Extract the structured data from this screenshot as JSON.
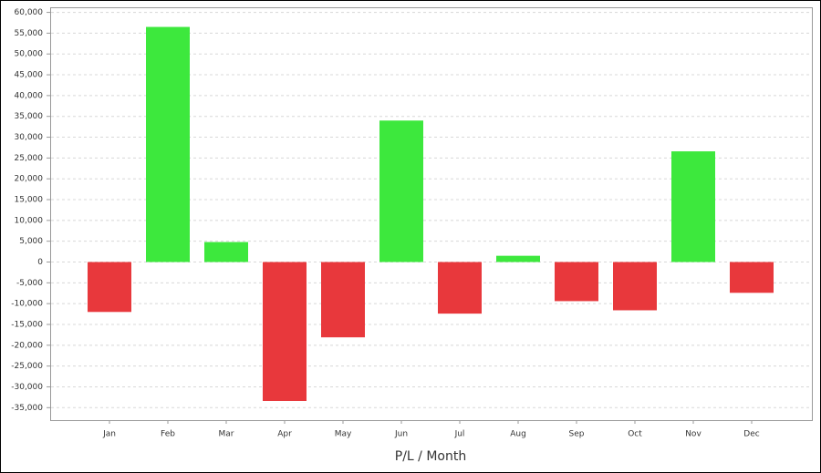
{
  "chart_data": {
    "type": "bar",
    "x_label": "P/L / Month",
    "categories": [
      "Jan",
      "Feb",
      "Mar",
      "Apr",
      "May",
      "Jun",
      "Jul",
      "Aug",
      "Sep",
      "Oct",
      "Nov",
      "Dec"
    ],
    "values": [
      -12000,
      56500,
      4800,
      -33400,
      -18100,
      34000,
      -12400,
      1500,
      -9400,
      -11600,
      26600,
      -7400
    ],
    "positive_color": "#3de83d",
    "negative_color": "#e8383c",
    "ylim": [
      -38000,
      61000
    ],
    "yticks": [
      {
        "value": -35000,
        "label": "-35,000"
      },
      {
        "value": -30000,
        "label": "-30,000"
      },
      {
        "value": -25000,
        "label": "-25,000"
      },
      {
        "value": -20000,
        "label": "-20,000"
      },
      {
        "value": -15000,
        "label": "-15,000"
      },
      {
        "value": -10000,
        "label": "-10,000"
      },
      {
        "value": -5000,
        "label": "-5,000"
      },
      0,
      {
        "value": 5000,
        "label": "5,000"
      },
      {
        "value": 10000,
        "label": "10,000"
      },
      {
        "value": 15000,
        "label": "15,000"
      },
      {
        "value": 20000,
        "label": "20,000"
      },
      {
        "value": 25000,
        "label": "25,000"
      },
      {
        "value": 30000,
        "label": "30,000"
      },
      {
        "value": 35000,
        "label": "35,000"
      },
      {
        "value": 40000,
        "label": "40,000"
      },
      {
        "value": 45000,
        "label": "45,000"
      },
      {
        "value": 50000,
        "label": "50,000"
      },
      {
        "value": 55000,
        "label": "55,000"
      },
      {
        "value": 60000,
        "label": "60,000"
      }
    ],
    "grid": true
  }
}
